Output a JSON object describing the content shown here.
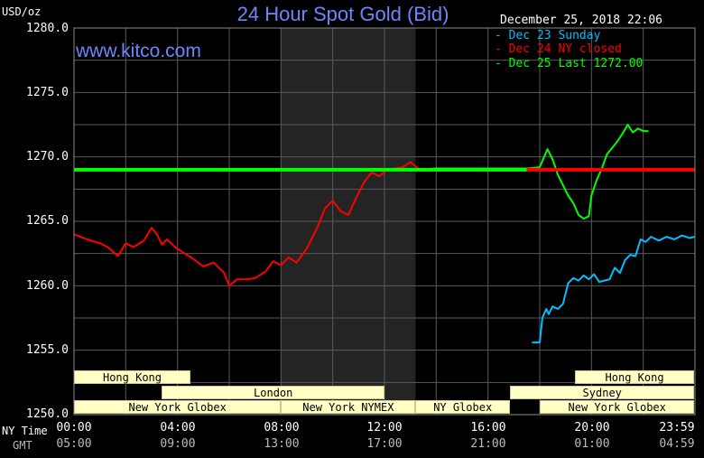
{
  "header": {
    "title": "24 Hour Spot Gold (Bid)",
    "website": "www.kitco.com",
    "unit_label": "USD/oz",
    "datetime": "December 25, 2018 22:06"
  },
  "axis_captions": {
    "ny_time": "NY Time",
    "gmt": "GMT"
  },
  "colors": {
    "background": "#000000",
    "grid": "#5a5a5a",
    "night_shade": "#242424",
    "title": "#6b86ff",
    "dec23": "#00bfff",
    "dec24": "#ff0000",
    "dec25": "#00ff00",
    "session_bar": "#ffffc6"
  },
  "chart_data": {
    "type": "line",
    "title": "24 Hour Spot Gold (Bid)",
    "ylabel": "USD/oz",
    "ylim": [
      1250,
      1280
    ],
    "xlim": [
      0,
      24
    ],
    "y_ticks": [
      "1280.0",
      "1275.0",
      "1270.0",
      "1265.0",
      "1260.0",
      "1255.0",
      "1250.0"
    ],
    "y_tick_values": [
      1280,
      1275,
      1270,
      1265,
      1260,
      1255,
      1250
    ],
    "x_ticks_ny": [
      "00:00",
      "04:00",
      "08:00",
      "12:00",
      "16:00",
      "20:00",
      "23:59"
    ],
    "x_ticks_gmt": [
      "05:00",
      "09:00",
      "13:00",
      "17:00",
      "21:00",
      "01:00",
      "04:59"
    ],
    "x_tick_hours": [
      0,
      4,
      8,
      12,
      16,
      20,
      23.98
    ],
    "grid": true,
    "legend_position": "top-right",
    "shaded_period": [
      8,
      13.2
    ],
    "series": [
      {
        "name": "Dec 23 Sunday",
        "color": "#00bfff",
        "x": [
          17.7,
          18.0,
          18.1,
          18.25,
          18.35,
          18.5,
          18.7,
          18.9,
          19.1,
          19.3,
          19.5,
          19.7,
          19.9,
          20.1,
          20.3,
          20.5,
          20.7,
          20.9,
          21.1,
          21.3,
          21.5,
          21.7,
          21.9,
          22.1,
          22.3,
          22.6,
          22.9,
          23.2,
          23.5,
          23.8,
          23.98
        ],
        "y": [
          1255.6,
          1255.6,
          1257.5,
          1258.2,
          1257.8,
          1258.4,
          1258.2,
          1258.6,
          1260.2,
          1260.6,
          1260.4,
          1260.8,
          1260.5,
          1260.9,
          1260.3,
          1260.4,
          1260.5,
          1261.4,
          1261.0,
          1262.0,
          1262.4,
          1262.3,
          1263.6,
          1263.4,
          1263.8,
          1263.5,
          1263.8,
          1263.6,
          1263.9,
          1263.7,
          1263.8
        ]
      },
      {
        "name": "Dec 24 NY closed",
        "color": "#ff0000",
        "x": [
          0.0,
          0.5,
          1.0,
          1.3,
          1.7,
          2.0,
          2.3,
          2.7,
          3.0,
          3.2,
          3.4,
          3.6,
          3.9,
          4.2,
          4.6,
          5.0,
          5.4,
          5.8,
          6.0,
          6.3,
          6.7,
          7.0,
          7.4,
          7.7,
          8.0,
          8.3,
          8.6,
          9.0,
          9.4,
          9.7,
          10.0,
          10.3,
          10.6,
          10.9,
          11.2,
          11.5,
          11.8,
          12.1,
          12.4,
          12.7,
          13.0,
          13.3,
          13.5,
          13.7,
          13.9,
          14.5,
          15.0,
          16.0,
          17.0,
          18.0,
          19.0,
          20.0,
          21.0,
          22.0,
          23.0,
          23.98
        ],
        "x_note": "",
        "y": [
          1264.0,
          1263.6,
          1263.3,
          1263.0,
          1262.3,
          1263.3,
          1263.0,
          1263.5,
          1264.5,
          1264.0,
          1263.2,
          1263.6,
          1263.0,
          1262.6,
          1262.1,
          1261.5,
          1261.8,
          1261.0,
          1260.0,
          1260.5,
          1260.5,
          1260.6,
          1261.1,
          1261.9,
          1261.6,
          1262.2,
          1261.8,
          1262.9,
          1264.5,
          1266.0,
          1266.6,
          1265.8,
          1265.5,
          1266.8,
          1268.0,
          1268.8,
          1268.5,
          1269.0,
          1269.1,
          1269.2,
          1269.6,
          1269.1,
          1269.0,
          1269.0,
          1269.0,
          1269.0,
          1269.0,
          1269.0,
          1269.0,
          1269.0,
          1269.0,
          1269.0,
          1269.0,
          1269.0,
          1269.0,
          1269.0
        ]
      },
      {
        "name": "Dec 25 Last 1272.00",
        "color": "#00ff00",
        "x": [
          0.0,
          2.0,
          4.0,
          6.0,
          8.0,
          10.0,
          12.0,
          13.2,
          14.0,
          16.0,
          17.5,
          18.0,
          18.15,
          18.3,
          18.5,
          18.7,
          18.9,
          19.1,
          19.3,
          19.5,
          19.7,
          19.9,
          20.0,
          20.2,
          20.4,
          20.6,
          20.8,
          21.0,
          21.2,
          21.4,
          21.6,
          21.8,
          22.0,
          22.2
        ],
        "y": [
          1269.0,
          1269.0,
          1269.0,
          1269.0,
          1269.0,
          1269.0,
          1269.0,
          1269.0,
          1269.1,
          1269.1,
          1269.1,
          1269.2,
          1269.9,
          1270.6,
          1269.8,
          1268.6,
          1267.8,
          1267.0,
          1266.4,
          1265.5,
          1265.2,
          1265.4,
          1267.0,
          1268.2,
          1269.1,
          1270.2,
          1270.7,
          1271.2,
          1271.8,
          1272.5,
          1271.9,
          1272.2,
          1272.0,
          1272.0
        ]
      }
    ]
  },
  "sessions": [
    {
      "label": "Hong Kong",
      "start": 0,
      "end": 4.5,
      "row": 0
    },
    {
      "label": "Hong Kong",
      "start": 19.35,
      "end": 23.98,
      "row": 0
    },
    {
      "label": "London",
      "start": 3.4,
      "end": 12.0,
      "row": 1
    },
    {
      "label": "Sydney",
      "start": 16.85,
      "end": 23.98,
      "row": 1
    },
    {
      "label": "New York Globex",
      "start": 0,
      "end": 8.0,
      "row": 2
    },
    {
      "label": "New York NYMEX",
      "start": 8.0,
      "end": 13.2,
      "row": 2
    },
    {
      "label": "NY Globex",
      "start": 13.2,
      "end": 16.85,
      "row": 2
    },
    {
      "label": "New York Globex",
      "start": 18.0,
      "end": 23.98,
      "row": 2
    }
  ]
}
